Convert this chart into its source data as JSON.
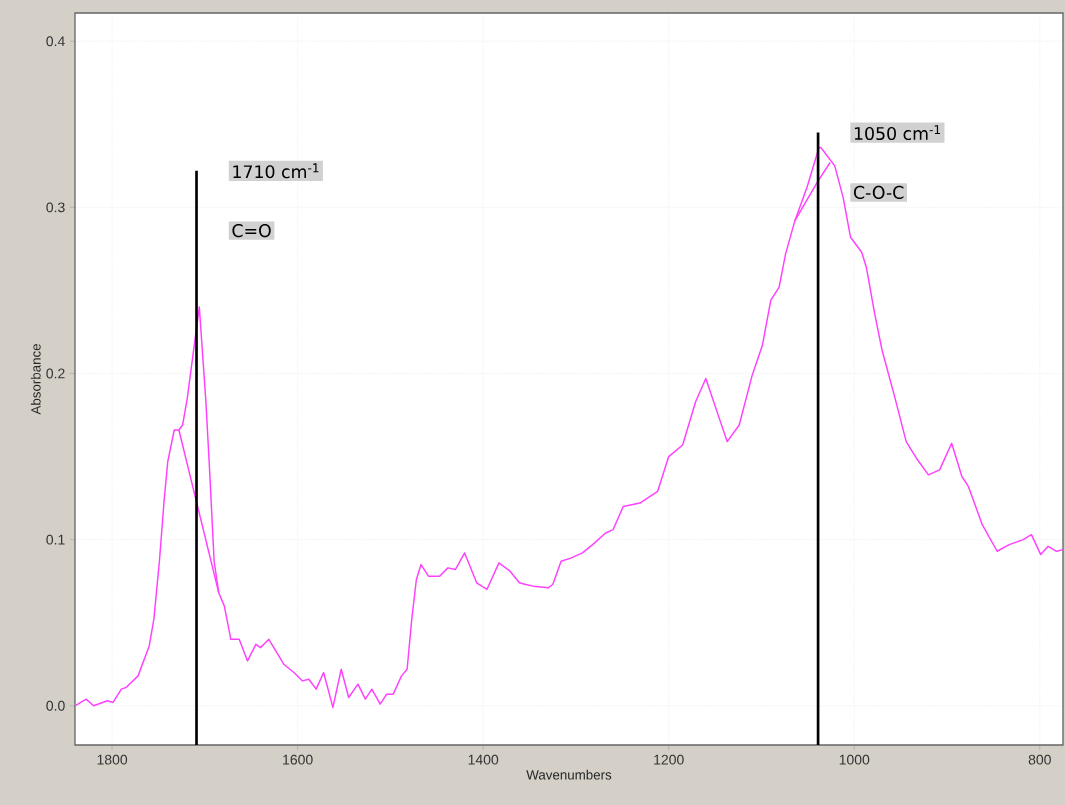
{
  "chart_data": {
    "type": "line",
    "xlabel": "Wavenumbers",
    "ylabel": "Absorbance",
    "xlim": [
      1840,
      775
    ],
    "ylim": [
      -0.0236,
      0.417
    ],
    "xticks": [
      1800,
      1600,
      1400,
      1200,
      1000,
      800
    ],
    "yticks": [
      {
        "value": 0,
        "label": "0.0"
      },
      0.1,
      0.2,
      0.3,
      0.4
    ],
    "grid": true,
    "series": [
      {
        "color": "#ff40ff",
        "x": [
          1840,
          1828,
          1820,
          1805,
          1799,
          1790,
          1785,
          1772,
          1760,
          1755,
          1749,
          1744,
          1740,
          1733,
          1728,
          1724,
          1719,
          1706,
          1699,
          1695,
          1690,
          1685,
          1679,
          1672,
          1663,
          1654,
          1645,
          1640,
          1631,
          1615,
          1604,
          1595,
          1588,
          1580,
          1572,
          1562,
          1553,
          1545,
          1535,
          1527,
          1520,
          1511,
          1504,
          1497,
          1488,
          1482,
          1477,
          1472,
          1467,
          1459,
          1447,
          1438,
          1430,
          1420,
          1407,
          1396,
          1383,
          1371,
          1361,
          1354,
          1346,
          1330,
          1325,
          1316,
          1305,
          1293,
          1282,
          1268,
          1260,
          1249,
          1231,
          1212,
          1200,
          1185,
          1171,
          1160,
          1137,
          1124,
          1110,
          1099,
          1090,
          1081,
          1074,
          1064,
          1051,
          1038,
          1036,
          1021,
          1012,
          1004,
          992,
          987,
          978,
          970,
          956,
          944,
          933,
          920,
          908,
          895,
          884,
          877,
          862,
          846,
          833,
          818,
          809,
          799,
          791,
          782,
          775
        ],
        "values": [
          0.0,
          0.004,
          0.0,
          0.003,
          0.002,
          0.01,
          0.011,
          0.018,
          0.036,
          0.052,
          0.087,
          0.123,
          0.147,
          0.166,
          0.166,
          0.169,
          0.185,
          0.24,
          0.184,
          0.143,
          0.087,
          0.068,
          0.06,
          0.04,
          0.04,
          0.027,
          0.037,
          0.035,
          0.04,
          0.025,
          0.02,
          0.015,
          0.016,
          0.01,
          0.02,
          -0.001,
          0.022,
          0.005,
          0.013,
          0.004,
          0.01,
          0.001,
          0.007,
          0.007,
          0.018,
          0.022,
          0.052,
          0.076,
          0.085,
          0.078,
          0.078,
          0.083,
          0.082,
          0.092,
          0.074,
          0.07,
          0.086,
          0.081,
          0.074,
          0.073,
          0.072,
          0.071,
          0.073,
          0.087,
          0.089,
          0.092,
          0.097,
          0.104,
          0.106,
          0.12,
          0.122,
          0.129,
          0.15,
          0.157,
          0.183,
          0.197,
          0.159,
          0.169,
          0.199,
          0.217,
          0.244,
          0.252,
          0.272,
          0.292,
          0.312,
          0.336,
          0.336,
          0.325,
          0.306,
          0.282,
          0.273,
          0.264,
          0.236,
          0.214,
          0.185,
          0.159,
          0.149,
          0.139,
          0.142,
          0.158,
          0.138,
          0.132,
          0.109,
          0.093,
          0.097,
          0.1,
          0.103,
          0.091,
          0.096,
          0.093,
          0.094
        ]
      },
      {
        "color": "#ff40ff",
        "x": [
          1728,
          1710,
          1685,
          1300,
          1064,
          1039,
          1026
        ],
        "values": [
          0.166,
          0.125,
          0.068,
          null,
          0.292,
          0.316,
          0.327
        ]
      }
    ],
    "ref_lines": [
      {
        "axis": "x",
        "value": 1709,
        "label": "1710 cm$^{-1}$",
        "color": "#000000"
      },
      {
        "axis": "x",
        "value": 1039,
        "label": "1050 cm$^{-1}$",
        "color": "#000000"
      }
    ],
    "annotations": [
      {
        "text": "C=O",
        "x": 1709,
        "y": 0.286
      },
      {
        "text": "C-O-C",
        "x": 1039,
        "y": 0.309
      }
    ]
  }
}
